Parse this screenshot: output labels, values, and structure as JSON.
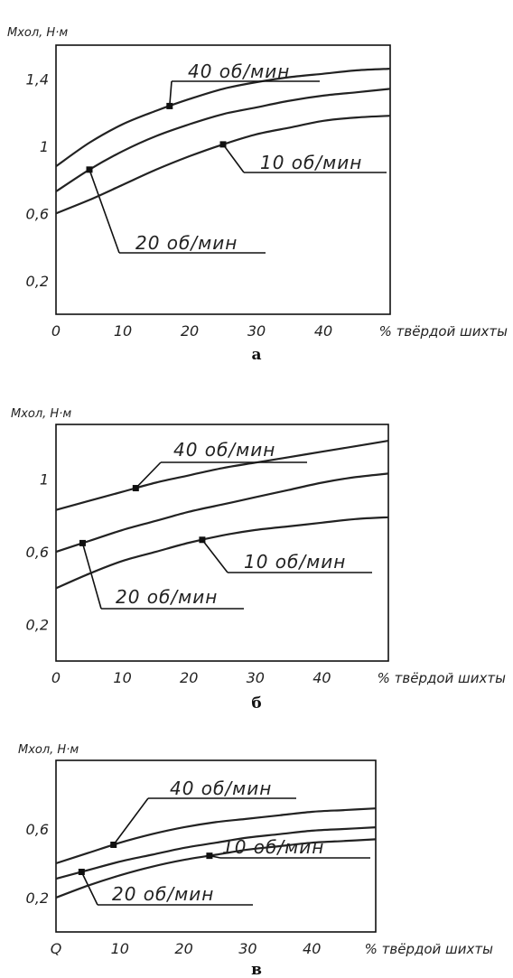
{
  "colors": {
    "line": "#222222",
    "background": "#ffffff"
  },
  "chart_data": [
    {
      "type": "line",
      "panel_label": "а",
      "ylabel": "Mхол, Н·м",
      "xlabel": "% твёрдой шихты",
      "xlim": [
        0,
        50
      ],
      "ylim": [
        0,
        1.6
      ],
      "xticks": [
        0,
        10,
        20,
        30,
        40
      ],
      "xtick_labels": [
        "0",
        "10",
        "20",
        "30",
        "40"
      ],
      "yticks": [
        0.2,
        0.6,
        1.0,
        1.4
      ],
      "ytick_labels": [
        "0,2",
        "0,6",
        "1",
        "1,4"
      ],
      "grid": false,
      "series": [
        {
          "name": "40 об/мин",
          "x": [
            0,
            5,
            10,
            15,
            20,
            25,
            30,
            35,
            40,
            45,
            50
          ],
          "y": [
            0.88,
            1.02,
            1.13,
            1.21,
            1.28,
            1.34,
            1.38,
            1.41,
            1.43,
            1.45,
            1.46
          ],
          "marker_x": 17
        },
        {
          "name": "20 об/мин",
          "x": [
            0,
            5,
            10,
            15,
            20,
            25,
            30,
            35,
            40,
            45,
            50
          ],
          "y": [
            0.73,
            0.86,
            0.97,
            1.06,
            1.13,
            1.19,
            1.23,
            1.27,
            1.3,
            1.32,
            1.34
          ],
          "marker_x": 5
        },
        {
          "name": "10 об/мин",
          "x": [
            0,
            5,
            10,
            15,
            20,
            25,
            30,
            35,
            40,
            45,
            50
          ],
          "y": [
            0.6,
            0.68,
            0.77,
            0.86,
            0.94,
            1.01,
            1.07,
            1.11,
            1.15,
            1.17,
            1.18
          ],
          "marker_x": 25
        }
      ]
    },
    {
      "type": "line",
      "panel_label": "б",
      "ylabel": "Mхол, Н·м",
      "xlabel": "% твёрдой шихты",
      "xlim": [
        0,
        50
      ],
      "ylim": [
        0,
        1.3
      ],
      "xticks": [
        0,
        10,
        20,
        30,
        40
      ],
      "xtick_labels": [
        "0",
        "10",
        "20",
        "30",
        "40"
      ],
      "yticks": [
        0.2,
        0.6,
        1.0
      ],
      "ytick_labels": [
        "0,2",
        "0,6",
        "1"
      ],
      "grid": false,
      "series": [
        {
          "name": "40 об/мин",
          "x": [
            0,
            5,
            10,
            15,
            20,
            25,
            30,
            35,
            40,
            45,
            50
          ],
          "y": [
            0.83,
            0.88,
            0.93,
            0.98,
            1.02,
            1.06,
            1.09,
            1.12,
            1.15,
            1.18,
            1.21
          ],
          "marker_x": 12
        },
        {
          "name": "20 об/мин",
          "x": [
            0,
            5,
            10,
            15,
            20,
            25,
            30,
            35,
            40,
            45,
            50
          ],
          "y": [
            0.6,
            0.66,
            0.72,
            0.77,
            0.82,
            0.86,
            0.9,
            0.94,
            0.98,
            1.01,
            1.03
          ],
          "marker_x": 4
        },
        {
          "name": "10 об/мин",
          "x": [
            0,
            5,
            10,
            15,
            20,
            25,
            30,
            35,
            40,
            45,
            50
          ],
          "y": [
            0.4,
            0.48,
            0.55,
            0.6,
            0.65,
            0.69,
            0.72,
            0.74,
            0.76,
            0.78,
            0.79
          ],
          "marker_x": 22
        }
      ]
    },
    {
      "type": "line",
      "panel_label": "в",
      "ylabel": "Mхол, Н·м",
      "xlabel": "% твёрдой шихты",
      "xlim": [
        0,
        50
      ],
      "ylim": [
        0,
        1.0
      ],
      "xticks": [
        0,
        10,
        20,
        30,
        40
      ],
      "xtick_labels": [
        "Q",
        "10",
        "20",
        "30",
        "40"
      ],
      "yticks": [
        0.2,
        0.6
      ],
      "ytick_labels": [
        "0,2",
        "0,6"
      ],
      "grid": false,
      "series": [
        {
          "name": "40 об/мин",
          "x": [
            0,
            5,
            10,
            15,
            20,
            25,
            30,
            35,
            40,
            45,
            50
          ],
          "y": [
            0.4,
            0.46,
            0.52,
            0.57,
            0.61,
            0.64,
            0.66,
            0.68,
            0.7,
            0.71,
            0.72
          ],
          "marker_x": 9
        },
        {
          "name": "20 об/мин",
          "x": [
            0,
            5,
            10,
            15,
            20,
            25,
            30,
            35,
            40,
            45,
            50
          ],
          "y": [
            0.31,
            0.36,
            0.41,
            0.45,
            0.49,
            0.52,
            0.55,
            0.57,
            0.59,
            0.6,
            0.61
          ],
          "marker_x": 4
        },
        {
          "name": "10 об/мин",
          "x": [
            0,
            5,
            10,
            15,
            20,
            25,
            30,
            35,
            40,
            45,
            50
          ],
          "y": [
            0.2,
            0.27,
            0.33,
            0.38,
            0.42,
            0.45,
            0.48,
            0.5,
            0.52,
            0.53,
            0.54
          ],
          "marker_x": 24
        }
      ]
    }
  ]
}
